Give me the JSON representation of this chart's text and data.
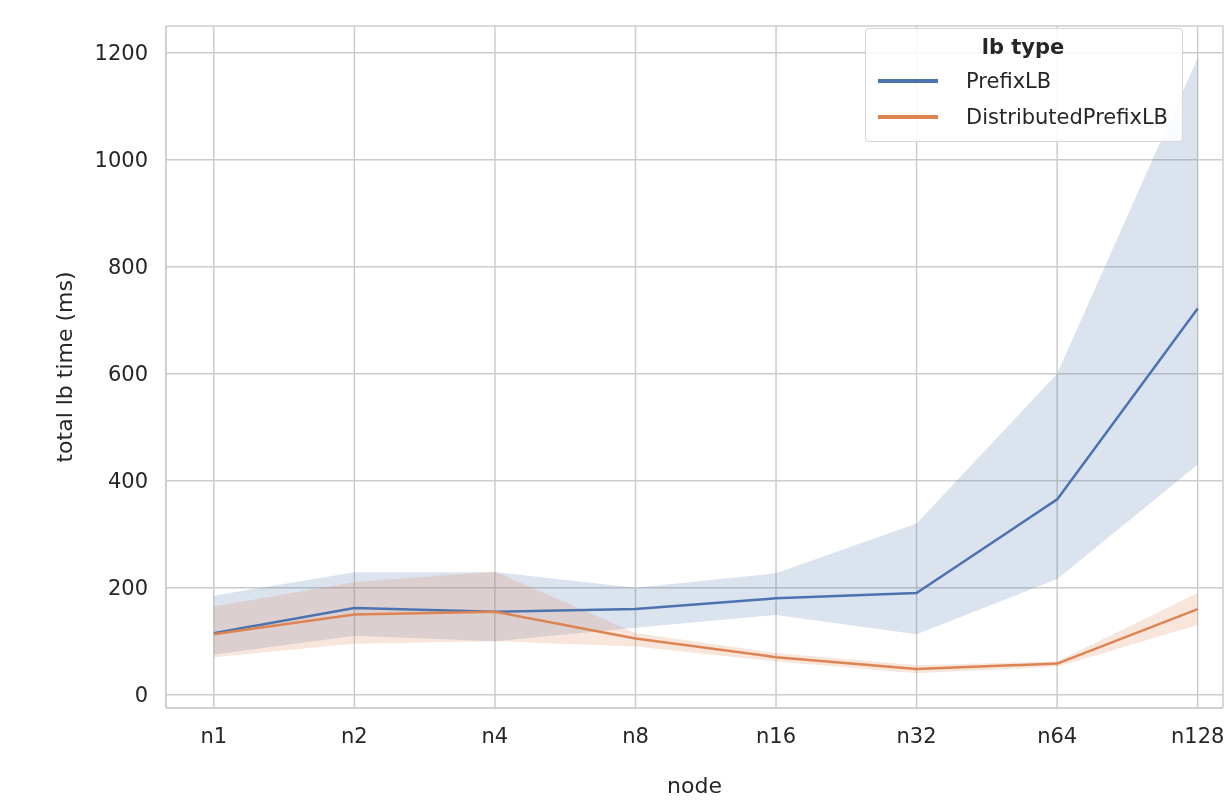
{
  "chart_data": {
    "type": "line",
    "xlabel": "node",
    "ylabel": "total lb time (ms)",
    "legend_title": "lb type",
    "categories": [
      "n1",
      "n2",
      "n4",
      "n8",
      "n16",
      "n32",
      "n64",
      "n128"
    ],
    "series": [
      {
        "name": "PrefixLB",
        "color": "#4c72b0",
        "values": [
          115,
          162,
          155,
          160,
          180,
          190,
          365,
          722
        ],
        "lower": [
          75,
          110,
          100,
          125,
          149,
          113,
          216,
          430
        ],
        "upper": [
          185,
          229,
          229,
          200,
          227,
          320,
          600,
          1190
        ]
      },
      {
        "name": "DistributedPrefixLB",
        "color": "#dd8452",
        "values": [
          113,
          150,
          155,
          105,
          70,
          48,
          58,
          160
        ],
        "lower": [
          70,
          95,
          100,
          90,
          62,
          40,
          52,
          130
        ],
        "upper": [
          165,
          210,
          230,
          115,
          78,
          55,
          62,
          190
        ]
      }
    ],
    "ylim": [
      -25,
      1250
    ],
    "yticks": [
      0,
      200,
      400,
      600,
      800,
      1000,
      1200
    ],
    "grid": true,
    "legend": "top right",
    "marker": "none",
    "line_style": "solid"
  }
}
